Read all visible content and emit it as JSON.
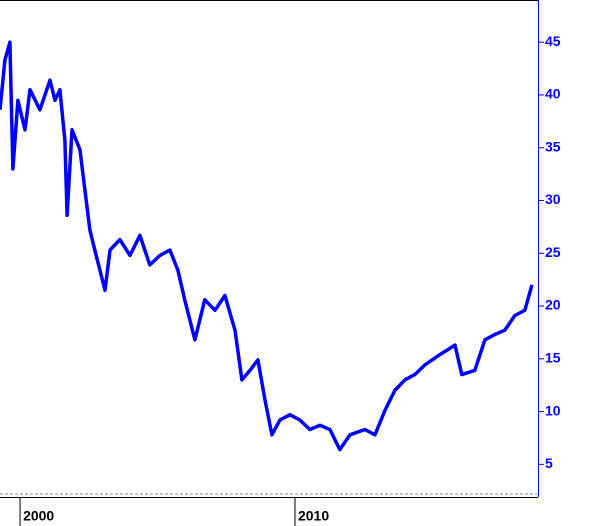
{
  "chart_data": {
    "type": "line",
    "color": "#0000ff",
    "y_axis_side": "right",
    "x": [
      1999.27,
      1999.45,
      1999.63,
      1999.74,
      1999.92,
      2000.18,
      2000.36,
      2000.72,
      2001.09,
      2001.27,
      2001.45,
      2001.63,
      2001.71,
      2001.89,
      2002.18,
      2002.36,
      2002.54,
      2002.72,
      2003.09,
      2003.27,
      2003.63,
      2004.0,
      2004.36,
      2004.72,
      2005.09,
      2005.45,
      2005.74,
      2005.99,
      2006.36,
      2006.72,
      2007.09,
      2007.45,
      2007.82,
      2008.07,
      2008.36,
      2008.65,
      2008.91,
      2009.16,
      2009.45,
      2009.82,
      2010.18,
      2010.54,
      2010.91,
      2011.27,
      2011.63,
      2012.0,
      2012.54,
      2012.91,
      2013.27,
      2013.63,
      2014.0,
      2014.36,
      2014.72,
      2015.27,
      2015.82,
      2016.07,
      2016.54,
      2016.91,
      2017.27,
      2017.63,
      2018.0,
      2018.36,
      2018.62
    ],
    "values": [
      38.6,
      43.3,
      45,
      33,
      39.5,
      36.7,
      40.5,
      38.6,
      41.4,
      39.5,
      40.5,
      35.7,
      28.6,
      36.7,
      34.8,
      31,
      27.2,
      25.3,
      21.5,
      25.3,
      26.3,
      24.8,
      26.7,
      23.9,
      24.8,
      25.3,
      23.4,
      20.6,
      16.8,
      20.6,
      19.6,
      21,
      17.7,
      13,
      13.9,
      14.9,
      11.1,
      7.8,
      9.2,
      9.7,
      9.2,
      8.3,
      8.7,
      8.3,
      6.4,
      7.8,
      8.3,
      7.8,
      10.1,
      12,
      13,
      13.5,
      14.4,
      15.4,
      16.3,
      13.5,
      13.9,
      16.8,
      17.3,
      17.7,
      19.1,
      19.6,
      22
    ],
    "xlim": [
      1999.27,
      2018.84
    ],
    "xticks": [
      2000,
      2010
    ],
    "ylim": [
      2,
      49
    ],
    "yticks": [
      5,
      10,
      15,
      20,
      25,
      30,
      35,
      40,
      45
    ]
  }
}
